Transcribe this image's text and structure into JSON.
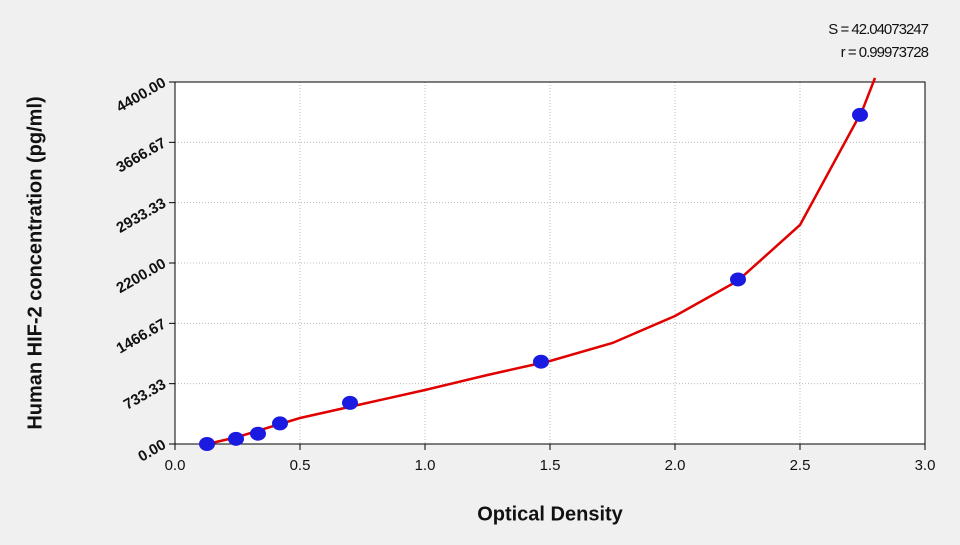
{
  "chart_data": {
    "type": "scatter",
    "x_label": "Optical Density",
    "y_label": "Human  HIF-2 concentration (pg/ml)",
    "annotations": [
      "S = 42.04073247",
      "r = 0.99973728"
    ],
    "xlim": [
      0,
      3
    ],
    "ylim": [
      0,
      4400
    ],
    "xticks": [
      {
        "value": 0,
        "label": "0.0"
      },
      0.5,
      {
        "value": 1,
        "label": "1.0"
      },
      1.5,
      {
        "value": 2,
        "label": "2.0"
      },
      2.5,
      {
        "value": 3,
        "label": "3.0"
      }
    ],
    "yticks": [
      {
        "value": 0,
        "label": "0.00"
      },
      {
        "value": 733.33,
        "label": "733.33"
      },
      {
        "value": 1466.67,
        "label": "1466.67"
      },
      {
        "value": 2200,
        "label": "2200.00"
      },
      {
        "value": 2933.33,
        "label": "2933.33"
      },
      {
        "value": 3666.67,
        "label": "3666.67"
      },
      {
        "value": 4400,
        "label": "4400.00"
      }
    ],
    "grid": true,
    "series": [
      {
        "kind": "points",
        "color": "#1a1ae0",
        "x": [
          0.128,
          0.244,
          0.332,
          0.42,
          0.7,
          1.464,
          2.252,
          2.74
        ],
        "values": [
          0,
          62.5,
          125,
          250,
          500,
          1000,
          2000,
          4000
        ]
      },
      {
        "kind": "curve",
        "color": "#e00000",
        "x": [
          0.13,
          0.25,
          0.5,
          0.75,
          1.0,
          1.25,
          1.5,
          1.75,
          2.0,
          2.25,
          2.5,
          2.75,
          2.8
        ],
        "values": [
          0,
          85,
          316,
          486,
          656,
          839,
          1009,
          1228,
          1556,
          1981,
          2662,
          4060,
          4449
        ]
      }
    ]
  }
}
